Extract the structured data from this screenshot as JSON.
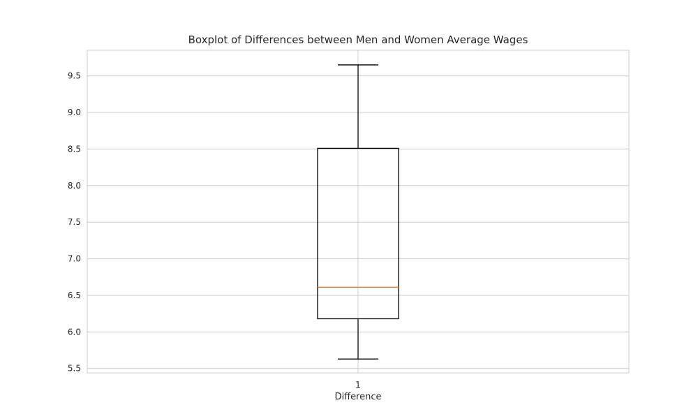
{
  "chart_data": {
    "type": "boxplot",
    "title": "Boxplot of Differences between Men and Women Average Wages",
    "xlabel": "Difference",
    "ylabel": "",
    "categories": [
      "1"
    ],
    "series": [
      {
        "whisker_low": 5.63,
        "q1": 6.18,
        "median": 6.61,
        "q3": 8.51,
        "whisker_high": 9.65
      }
    ],
    "ylim": [
      5.44,
      9.85
    ],
    "y_ticks": [
      5.5,
      6.0,
      6.5,
      7.0,
      7.5,
      8.0,
      8.5,
      9.0,
      9.5
    ],
    "y_tick_labels": [
      "5.5",
      "6.0",
      "6.5",
      "7.0",
      "7.5",
      "8.0",
      "8.5",
      "9.0",
      "9.5"
    ],
    "grid": true,
    "colors": {
      "box": "#000000",
      "median": "#ff7f0e",
      "grid": "#cccccc",
      "axes_edge": "#cccccc",
      "text": "#262626"
    }
  }
}
